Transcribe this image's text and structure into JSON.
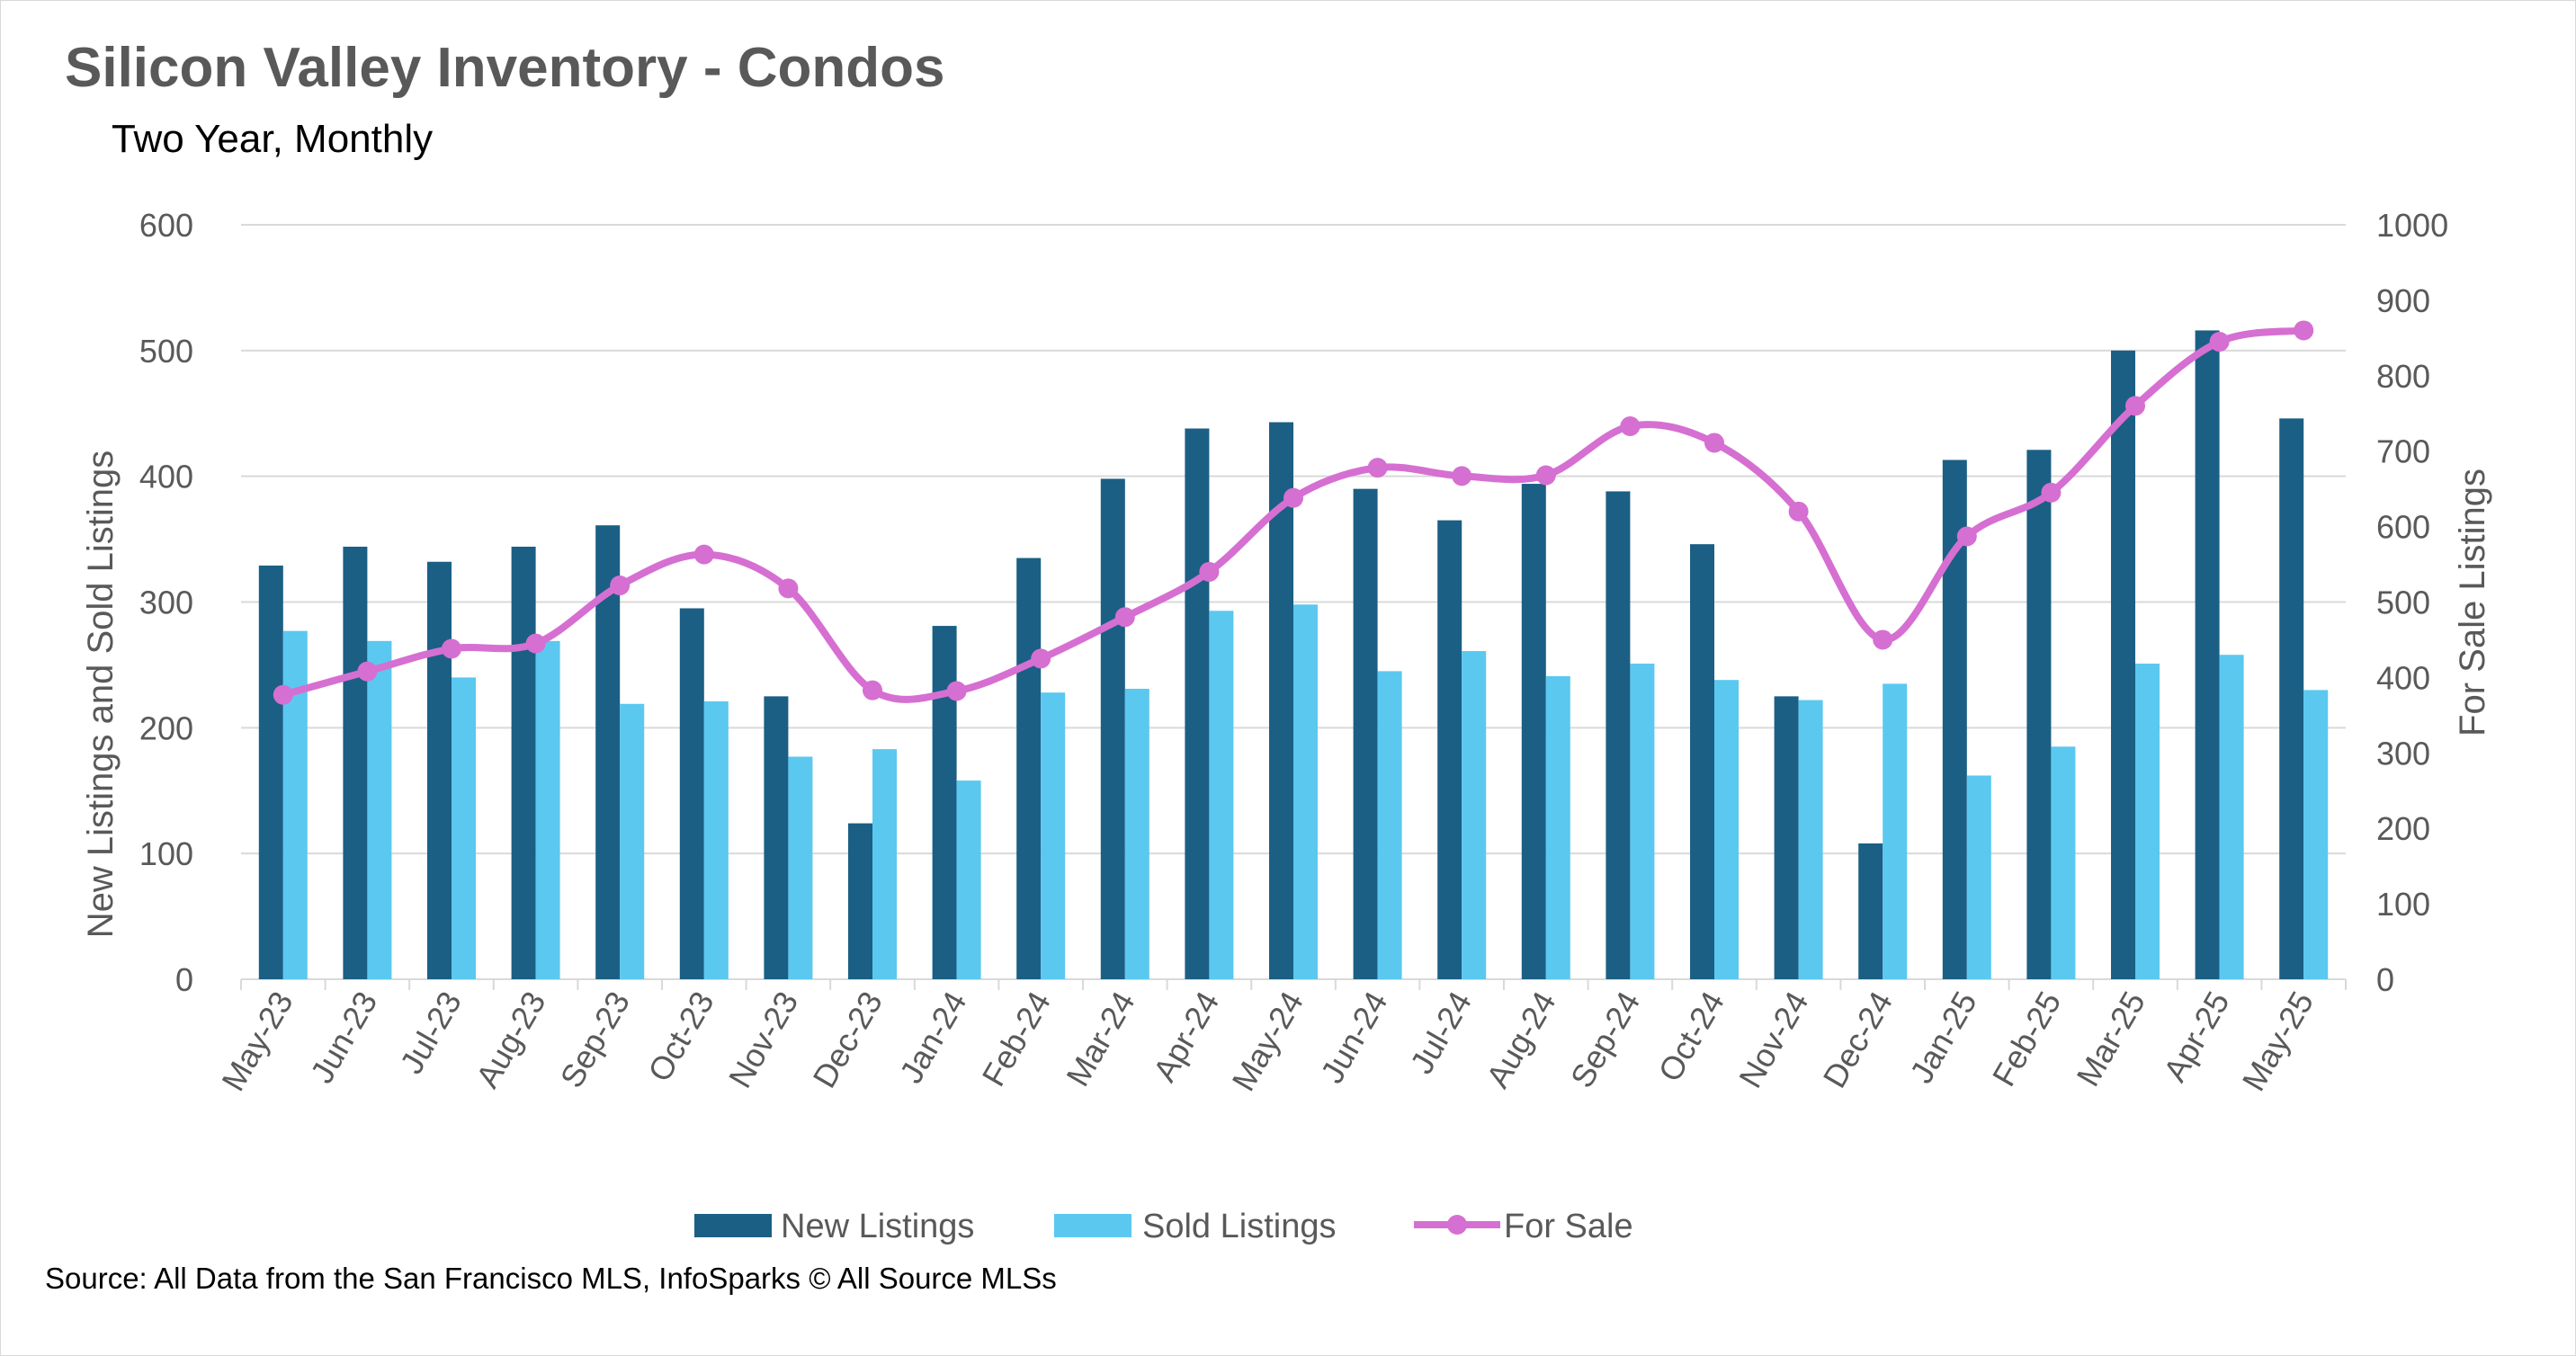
{
  "colors": {
    "new_listings": "#1b5f84",
    "sold_listings": "#5bc8f0",
    "for_sale": "#d66fd2",
    "gridline": "#d9d9d9",
    "text": "#595959"
  },
  "chart_data": {
    "type": "bar",
    "title": "Silicon Valley Inventory - Condos",
    "subtitle": "Two Year, Monthly",
    "source": "Source: All Data from the San Francisco MLS, InfoSparks © All Source MLSs",
    "categories": [
      "May-23",
      "Jun-23",
      "Jul-23",
      "Aug-23",
      "Sep-23",
      "Oct-23",
      "Nov-23",
      "Dec-23",
      "Jan-24",
      "Feb-24",
      "Mar-24",
      "Apr-24",
      "May-24",
      "Jun-24",
      "Jul-24",
      "Aug-24",
      "Sep-24",
      "Oct-24",
      "Nov-24",
      "Dec-24",
      "Jan-25",
      "Feb-25",
      "Mar-25",
      "Apr-25",
      "May-25"
    ],
    "ylabel": "New Listings and Sold Listings",
    "ylabel_right": "For Sale Listings",
    "ylim": [
      0,
      600
    ],
    "ylim_right": [
      0,
      1000
    ],
    "yticks": [
      "0",
      "100",
      "200",
      "300",
      "400",
      "500",
      "600"
    ],
    "yticks_right": [
      "0",
      "100",
      "200",
      "300",
      "400",
      "500",
      "600",
      "700",
      "800",
      "900",
      "1000"
    ],
    "grid": true,
    "legend_position": "bottom",
    "series": [
      {
        "name": "New Listings",
        "type": "bar",
        "axis": "left",
        "values": [
          329,
          344,
          332,
          344,
          361,
          295,
          225,
          124,
          281,
          335,
          398,
          438,
          443,
          390,
          365,
          394,
          388,
          346,
          225,
          108,
          413,
          421,
          500,
          516,
          446
        ]
      },
      {
        "name": "Sold Listings",
        "type": "bar",
        "axis": "left",
        "values": [
          277,
          269,
          240,
          269,
          219,
          221,
          177,
          183,
          158,
          228,
          231,
          293,
          298,
          245,
          261,
          241,
          251,
          238,
          222,
          235,
          162,
          185,
          251,
          258,
          230
        ]
      },
      {
        "name": "For Sale",
        "type": "line",
        "axis": "right",
        "values": [
          377,
          408,
          438,
          445,
          522,
          563,
          518,
          383,
          382,
          425,
          480,
          540,
          638,
          678,
          667,
          668,
          733,
          711,
          620,
          450,
          587,
          645,
          760,
          845,
          860
        ]
      }
    ]
  }
}
